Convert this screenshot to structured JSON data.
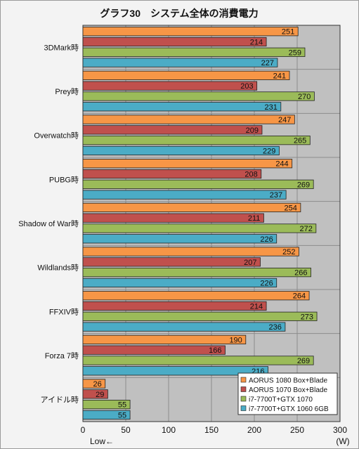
{
  "chart_data": {
    "type": "bar",
    "orientation": "horizontal",
    "title": "グラフ30　システム全体の消費電力",
    "categories": [
      "3DMark時",
      "Prey時",
      "Overwatch時",
      "PUBG時",
      "Shadow of War時",
      "Wildlands時",
      "FFXIV時",
      "Forza 7時",
      "アイドル時"
    ],
    "series": [
      {
        "name": "AORUS 1080 Box+Blade",
        "color": "#f79646",
        "values": [
          251,
          241,
          247,
          244,
          254,
          252,
          264,
          190,
          26
        ]
      },
      {
        "name": "AORUS 1070 Box+Blade",
        "color": "#c0504d",
        "values": [
          214,
          203,
          209,
          208,
          211,
          207,
          214,
          166,
          29
        ]
      },
      {
        "name": "i7-7700T+GTX 1070",
        "color": "#9bbb59",
        "values": [
          259,
          270,
          265,
          269,
          272,
          266,
          273,
          269,
          55
        ]
      },
      {
        "name": "i7-7700T+GTX 1060 6GB",
        "color": "#4bacc6",
        "values": [
          227,
          231,
          229,
          237,
          226,
          226,
          236,
          216,
          55
        ]
      }
    ],
    "xlim": [
      0,
      300
    ],
    "xticks": [
      0,
      50,
      100,
      150,
      200,
      250,
      300
    ],
    "xlabel_left": "Low←",
    "xlabel_unit": "(W)",
    "grid": true,
    "legend_position": "bottom-right",
    "plot_background": "#c0c0c0"
  }
}
